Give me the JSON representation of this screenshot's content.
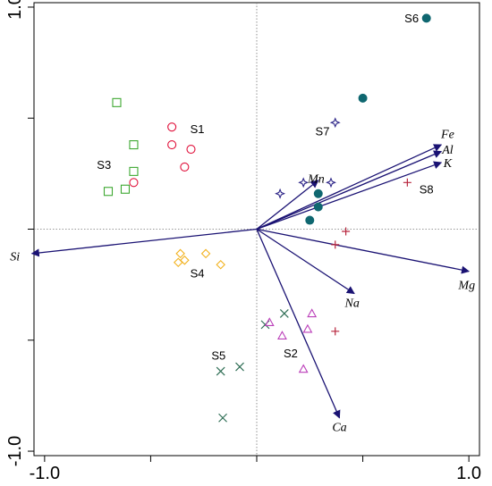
{
  "chart_data": {
    "type": "scatter",
    "title": "",
    "xlabel": "",
    "ylabel": "",
    "xlim": [
      -1.05,
      1.05
    ],
    "ylim": [
      -1.02,
      1.02
    ],
    "grid": false,
    "x_ticks": [
      -1.0,
      1.0
    ],
    "x_tick_labels": [
      "-1.0",
      "1.0"
    ],
    "y_ticks": [
      -1.0,
      1.0
    ],
    "y_tick_labels": [
      "-1.0",
      "1.0"
    ],
    "minor_ticks": [
      -0.5,
      0.0,
      0.5
    ],
    "zero_lines": true,
    "arrow_color": "#1a1273",
    "arrows": [
      {
        "label": "Si",
        "x": -1.06,
        "y": -0.11,
        "label_pos": [
          -1.14,
          -0.12
        ]
      },
      {
        "label": "Mg",
        "x": 1.0,
        "y": -0.19,
        "label_pos": [
          0.99,
          -0.25
        ]
      },
      {
        "label": "Na",
        "x": 0.46,
        "y": -0.29,
        "label_pos": [
          0.45,
          -0.33
        ]
      },
      {
        "label": "Ca",
        "x": 0.39,
        "y": -0.85,
        "label_pos": [
          0.39,
          -0.89
        ]
      },
      {
        "label": "Fe",
        "x": 0.87,
        "y": 0.38,
        "label_pos": [
          0.9,
          0.43
        ]
      },
      {
        "label": "Al",
        "x": 0.87,
        "y": 0.35,
        "label_pos": [
          0.9,
          0.36
        ]
      },
      {
        "label": "K",
        "x": 0.87,
        "y": 0.3,
        "label_pos": [
          0.9,
          0.3
        ]
      },
      {
        "label": "Mn",
        "x": 0.29,
        "y": 0.22,
        "label_pos": [
          0.28,
          0.23
        ]
      }
    ],
    "series": [
      {
        "name": "S1",
        "marker": "circle-open",
        "color": "#e0103a",
        "label_pos": [
          -0.28,
          0.45
        ],
        "points": [
          [
            -0.4,
            0.46
          ],
          [
            -0.4,
            0.38
          ],
          [
            -0.31,
            0.36
          ],
          [
            -0.34,
            0.28
          ],
          [
            -0.58,
            0.21
          ]
        ]
      },
      {
        "name": "S3",
        "marker": "square-open",
        "color": "#3ea832",
        "label_pos": [
          -0.72,
          0.29
        ],
        "points": [
          [
            -0.66,
            0.57
          ],
          [
            -0.58,
            0.38
          ],
          [
            -0.58,
            0.26
          ],
          [
            -0.62,
            0.18
          ],
          [
            -0.7,
            0.17
          ]
        ]
      },
      {
        "name": "S4",
        "marker": "diamond-open",
        "color": "#f2b21e",
        "label_pos": [
          -0.28,
          -0.2
        ],
        "points": [
          [
            -0.36,
            -0.11
          ],
          [
            -0.24,
            -0.11
          ],
          [
            -0.34,
            -0.14
          ],
          [
            -0.37,
            -0.15
          ],
          [
            -0.17,
            -0.16
          ]
        ]
      },
      {
        "name": "S5",
        "marker": "x",
        "color": "#2f6e55",
        "label_pos": [
          -0.18,
          -0.57
        ],
        "points": [
          [
            0.13,
            -0.38
          ],
          [
            0.04,
            -0.43
          ],
          [
            -0.08,
            -0.62
          ],
          [
            -0.17,
            -0.64
          ],
          [
            -0.16,
            -0.85
          ]
        ]
      },
      {
        "name": "S2",
        "marker": "triangle-open",
        "color": "#bb3fb9",
        "label_pos": [
          0.16,
          -0.56
        ],
        "points": [
          [
            0.26,
            -0.38
          ],
          [
            0.06,
            -0.42
          ],
          [
            0.24,
            -0.45
          ],
          [
            0.12,
            -0.48
          ],
          [
            0.22,
            -0.63
          ]
        ]
      },
      {
        "name": "S6",
        "marker": "circle-filled",
        "color": "#0f6770",
        "label_pos": [
          0.73,
          0.95
        ],
        "points": [
          [
            0.8,
            0.95
          ],
          [
            0.5,
            0.59
          ],
          [
            0.29,
            0.16
          ],
          [
            0.29,
            0.1
          ],
          [
            0.25,
            0.04
          ]
        ]
      },
      {
        "name": "S7",
        "marker": "star4-open",
        "color": "#2a2286",
        "label_pos": [
          0.31,
          0.44
        ],
        "points": [
          [
            0.37,
            0.48
          ],
          [
            0.22,
            0.21
          ],
          [
            0.35,
            0.21
          ],
          [
            0.11,
            0.16
          ]
        ]
      },
      {
        "name": "S8",
        "marker": "plus",
        "color": "#b8263e",
        "label_pos": [
          0.8,
          0.18
        ],
        "points": [
          [
            0.71,
            0.21
          ],
          [
            0.42,
            -0.01
          ],
          [
            0.37,
            -0.07
          ],
          [
            0.37,
            -0.46
          ]
        ]
      }
    ]
  }
}
